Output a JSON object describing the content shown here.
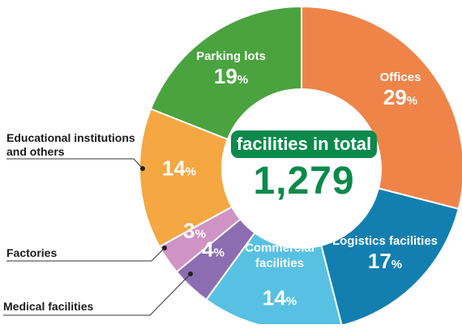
{
  "chart_data": {
    "type": "pie",
    "variant": "donut",
    "center": {
      "badge": "facilities in total",
      "total": "1,279"
    },
    "slices": [
      {
        "label": "Offices",
        "value": 29,
        "display": "29",
        "color": "#ef8449",
        "label_inside": true
      },
      {
        "label": "Logistics facilities",
        "value": 17,
        "display": "17",
        "color": "#127fb0",
        "label_inside": true
      },
      {
        "label": "Commercial\nfacilities",
        "value": 14,
        "display": "14",
        "color": "#58c1e3",
        "label_inside": true
      },
      {
        "label": "Medical facilities",
        "value": 4,
        "display": "4",
        "color": "#8c6db1",
        "label_inside": false
      },
      {
        "label": "Factories",
        "value": 3,
        "display": "3",
        "color": "#cf93c4",
        "label_inside": false
      },
      {
        "label": "Educational institutions\nand others",
        "value": 14,
        "display": "14",
        "color": "#f5a742",
        "label_inside": false
      },
      {
        "label": "Parking lots",
        "value": 19,
        "display": "19",
        "color": "#4aa33f",
        "label_inside": true
      }
    ],
    "unit": "%"
  }
}
